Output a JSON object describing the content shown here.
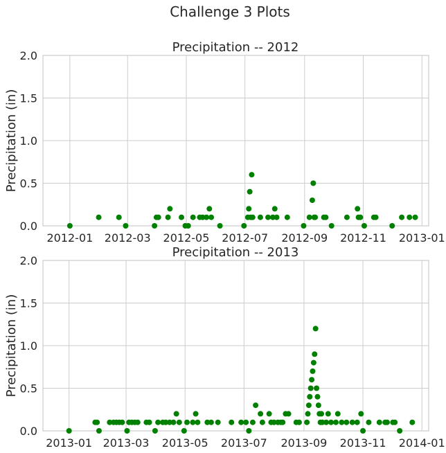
{
  "suptitle": "Challenge 3 Plots",
  "chart_data": [
    {
      "type": "scatter",
      "title": "Precipitation -- 2012",
      "xlabel": "",
      "ylabel": "Precipitation (in)",
      "ylim": [
        0,
        2.0
      ],
      "xlim": [
        "2011-12-04",
        "2013-01-08"
      ],
      "yticks": [
        "0.0",
        "0.5",
        "1.0",
        "1.5",
        "2.0"
      ],
      "yticks_values": [
        0,
        0.5,
        1.0,
        1.5,
        2.0
      ],
      "xticks": [
        "2012-01",
        "2012-03",
        "2012-05",
        "2012-07",
        "2012-09",
        "2012-11",
        "2013-01"
      ],
      "xticks_dates": [
        "2012-01-01",
        "2012-03-01",
        "2012-05-01",
        "2012-07-01",
        "2012-09-01",
        "2012-11-01",
        "2013-01-01"
      ],
      "grid": true,
      "marker_color": "#008000",
      "points": [
        [
          "2012-01-01",
          0.0
        ],
        [
          "2012-01-31",
          0.1
        ],
        [
          "2012-02-21",
          0.1
        ],
        [
          "2012-02-28",
          0.0
        ],
        [
          "2012-03-29",
          0.0
        ],
        [
          "2012-03-31",
          0.1
        ],
        [
          "2012-04-02",
          0.1
        ],
        [
          "2012-04-12",
          0.1
        ],
        [
          "2012-04-14",
          0.2
        ],
        [
          "2012-04-26",
          0.1
        ],
        [
          "2012-04-30",
          0.0
        ],
        [
          "2012-05-03",
          0.0
        ],
        [
          "2012-05-08",
          0.1
        ],
        [
          "2012-05-15",
          0.1
        ],
        [
          "2012-05-18",
          0.1
        ],
        [
          "2012-05-22",
          0.1
        ],
        [
          "2012-05-25",
          0.2
        ],
        [
          "2012-05-27",
          0.1
        ],
        [
          "2012-06-05",
          0.0
        ],
        [
          "2012-06-30",
          0.0
        ],
        [
          "2012-07-04",
          0.1
        ],
        [
          "2012-07-05",
          0.2
        ],
        [
          "2012-07-06",
          0.4
        ],
        [
          "2012-07-07",
          0.1
        ],
        [
          "2012-07-08",
          0.6
        ],
        [
          "2012-07-09",
          0.1
        ],
        [
          "2012-07-17",
          0.1
        ],
        [
          "2012-07-25",
          0.1
        ],
        [
          "2012-07-30",
          0.1
        ],
        [
          "2012-08-01",
          0.2
        ],
        [
          "2012-08-03",
          0.1
        ],
        [
          "2012-08-14",
          0.1
        ],
        [
          "2012-08-31",
          0.0
        ],
        [
          "2012-09-06",
          0.1
        ],
        [
          "2012-09-09",
          0.3
        ],
        [
          "2012-09-10",
          0.5
        ],
        [
          "2012-09-11",
          0.1
        ],
        [
          "2012-09-12",
          0.1
        ],
        [
          "2012-09-21",
          0.1
        ],
        [
          "2012-09-23",
          0.1
        ],
        [
          "2012-09-29",
          0.0
        ],
        [
          "2012-10-15",
          0.1
        ],
        [
          "2012-10-26",
          0.2
        ],
        [
          "2012-10-27",
          0.1
        ],
        [
          "2012-10-29",
          0.1
        ],
        [
          "2012-11-02",
          0.0
        ],
        [
          "2012-11-12",
          0.1
        ],
        [
          "2012-11-14",
          0.1
        ],
        [
          "2012-12-01",
          0.0
        ],
        [
          "2012-12-11",
          0.1
        ],
        [
          "2012-12-19",
          0.1
        ],
        [
          "2012-12-25",
          0.1
        ]
      ]
    },
    {
      "type": "scatter",
      "title": "Precipitation -- 2013",
      "xlabel": "",
      "ylabel": "Precipitation (in)",
      "ylim": [
        0,
        2.0
      ],
      "xlim": [
        "2012-12-05",
        "2014-01-08"
      ],
      "yticks": [
        "0.0",
        "0.5",
        "1.0",
        "1.5",
        "2.0"
      ],
      "yticks_values": [
        0,
        0.5,
        1.0,
        1.5,
        2.0
      ],
      "xticks": [
        "2013-01",
        "2013-03",
        "2013-05",
        "2013-07",
        "2013-09",
        "2013-11",
        "2014-01"
      ],
      "xticks_dates": [
        "2013-01-01",
        "2013-03-01",
        "2013-05-01",
        "2013-07-01",
        "2013-09-01",
        "2013-11-01",
        "2014-01-01"
      ],
      "grid": true,
      "marker_color": "#008000",
      "points": [
        [
          "2013-01-01",
          0.0
        ],
        [
          "2013-01-28",
          0.1
        ],
        [
          "2013-01-30",
          0.1
        ],
        [
          "2013-02-01",
          0.0
        ],
        [
          "2013-02-12",
          0.1
        ],
        [
          "2013-02-16",
          0.1
        ],
        [
          "2013-02-19",
          0.1
        ],
        [
          "2013-02-22",
          0.1
        ],
        [
          "2013-02-25",
          0.1
        ],
        [
          "2013-03-02",
          0.0
        ],
        [
          "2013-03-04",
          0.1
        ],
        [
          "2013-03-07",
          0.1
        ],
        [
          "2013-03-10",
          0.1
        ],
        [
          "2013-03-13",
          0.1
        ],
        [
          "2013-03-22",
          0.1
        ],
        [
          "2013-03-25",
          0.1
        ],
        [
          "2013-03-31",
          0.0
        ],
        [
          "2013-04-03",
          0.1
        ],
        [
          "2013-04-08",
          0.1
        ],
        [
          "2013-04-11",
          0.1
        ],
        [
          "2013-04-15",
          0.1
        ],
        [
          "2013-04-19",
          0.1
        ],
        [
          "2013-04-22",
          0.2
        ],
        [
          "2013-04-25",
          0.1
        ],
        [
          "2013-04-30",
          0.0
        ],
        [
          "2013-05-03",
          0.1
        ],
        [
          "2013-05-09",
          0.1
        ],
        [
          "2013-05-12",
          0.2
        ],
        [
          "2013-05-14",
          0.1
        ],
        [
          "2013-05-24",
          0.1
        ],
        [
          "2013-05-28",
          0.1
        ],
        [
          "2013-06-04",
          0.1
        ],
        [
          "2013-06-18",
          0.1
        ],
        [
          "2013-06-28",
          0.1
        ],
        [
          "2013-07-03",
          0.1
        ],
        [
          "2013-07-06",
          0.0
        ],
        [
          "2013-07-10",
          0.1
        ],
        [
          "2013-07-13",
          0.3
        ],
        [
          "2013-07-18",
          0.2
        ],
        [
          "2013-07-20",
          0.1
        ],
        [
          "2013-07-27",
          0.2
        ],
        [
          "2013-07-29",
          0.1
        ],
        [
          "2013-08-01",
          0.1
        ],
        [
          "2013-08-05",
          0.1
        ],
        [
          "2013-08-08",
          0.1
        ],
        [
          "2013-08-10",
          0.1
        ],
        [
          "2013-08-13",
          0.2
        ],
        [
          "2013-08-16",
          0.2
        ],
        [
          "2013-08-24",
          0.1
        ],
        [
          "2013-08-27",
          0.1
        ],
        [
          "2013-09-04",
          0.1
        ],
        [
          "2013-09-05",
          0.2
        ],
        [
          "2013-09-06",
          0.3
        ],
        [
          "2013-09-07",
          0.4
        ],
        [
          "2013-09-08",
          0.5
        ],
        [
          "2013-09-09",
          0.6
        ],
        [
          "2013-09-10",
          0.7
        ],
        [
          "2013-09-11",
          0.8
        ],
        [
          "2013-09-12",
          0.9
        ],
        [
          "2013-09-13",
          1.2
        ],
        [
          "2013-09-14",
          0.5
        ],
        [
          "2013-09-15",
          0.4
        ],
        [
          "2013-09-16",
          0.3
        ],
        [
          "2013-09-17",
          0.2
        ],
        [
          "2013-09-18",
          0.1
        ],
        [
          "2013-09-19",
          0.2
        ],
        [
          "2013-09-20",
          0.1
        ],
        [
          "2013-09-24",
          0.1
        ],
        [
          "2013-09-26",
          0.2
        ],
        [
          "2013-09-29",
          0.1
        ],
        [
          "2013-10-04",
          0.1
        ],
        [
          "2013-10-06",
          0.2
        ],
        [
          "2013-10-10",
          0.1
        ],
        [
          "2013-10-15",
          0.1
        ],
        [
          "2013-10-21",
          0.1
        ],
        [
          "2013-10-26",
          0.1
        ],
        [
          "2013-10-30",
          0.2
        ],
        [
          "2013-11-01",
          0.0
        ],
        [
          "2013-11-07",
          0.1
        ],
        [
          "2013-11-18",
          0.1
        ],
        [
          "2013-11-24",
          0.1
        ],
        [
          "2013-11-26",
          0.1
        ],
        [
          "2013-12-02",
          0.1
        ],
        [
          "2013-12-04",
          0.1
        ],
        [
          "2013-12-09",
          0.0
        ],
        [
          "2013-12-22",
          0.1
        ]
      ]
    }
  ]
}
